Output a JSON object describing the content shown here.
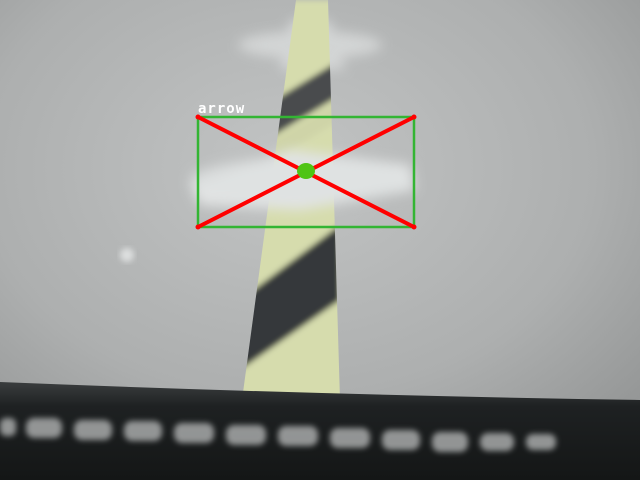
{
  "detection": {
    "label": "arrow",
    "box_color": "#33b533",
    "cross_color": "#ff0000",
    "center_color": "#4fc414"
  },
  "scene": {
    "floor_color": "#b1b3b3",
    "post_stripe_light": "#d6dcad",
    "post_stripe_dark": "#3a3d3e",
    "arrow_color": "#e2e4e4",
    "bottom_band_color": "#1e2122"
  }
}
